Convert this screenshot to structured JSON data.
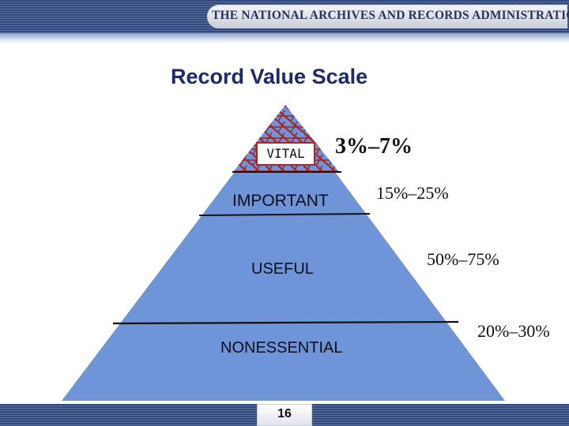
{
  "header": {
    "organization": "THE NATIONAL ARCHIVES AND RECORDS ADMINISTRATION"
  },
  "slide": {
    "title": "Record Value Scale",
    "page_number": "16"
  },
  "pyramid": {
    "fill_color": "#6f95d8",
    "vital_hatch_color": "#a1272a",
    "levels": [
      {
        "label": "VITAL",
        "percent": "3%–7%"
      },
      {
        "label": "IMPORTANT",
        "percent": "15%–25%"
      },
      {
        "label": "USEFUL",
        "percent": "50%–75%"
      },
      {
        "label": "NONESSENTIAL",
        "percent": "20%–30%"
      }
    ]
  }
}
